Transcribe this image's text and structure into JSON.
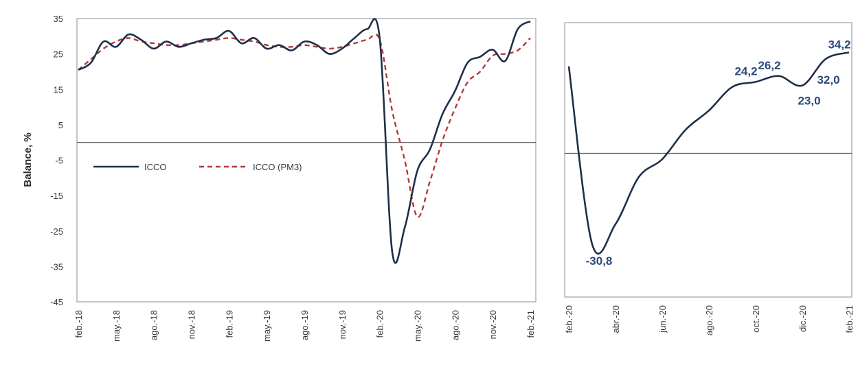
{
  "colors": {
    "icco": "#1f2f4a",
    "icco_pm3": "#b23a3a",
    "frame": "#8c8c8c",
    "zero_line": "#555555",
    "label": "#2b4a7a"
  },
  "chart_data": [
    {
      "type": "line",
      "ylabel": "Balance, %",
      "ylim": [
        -45,
        35
      ],
      "yticks": [
        "35",
        "25",
        "15",
        "5",
        "-5",
        "-15",
        "-25",
        "-35",
        "-45"
      ],
      "xtick_labels": [
        "feb.-18",
        "may.-18",
        "ago.-18",
        "nov.-18",
        "feb.-19",
        "may.-19",
        "ago.-19",
        "nov.-19",
        "feb.-20",
        "may.-20",
        "ago.-20",
        "nov.-20",
        "feb.-21"
      ],
      "x": [
        "feb.-18",
        "mar.-18",
        "abr.-18",
        "may.-18",
        "jun.-18",
        "jul.-18",
        "ago.-18",
        "sep.-18",
        "oct.-18",
        "nov.-18",
        "dic.-18",
        "ene.-19",
        "feb.-19",
        "mar.-19",
        "abr.-19",
        "may.-19",
        "jun.-19",
        "jul.-19",
        "ago.-19",
        "sep.-19",
        "oct.-19",
        "nov.-19",
        "dic.-19",
        "ene.-20",
        "feb.-20",
        "mar.-20",
        "abr.-20",
        "may.-20",
        "jun.-20",
        "jul.-20",
        "ago.-20",
        "sep.-20",
        "oct.-20",
        "nov.-20",
        "dic.-20",
        "ene.-21",
        "feb.-21"
      ],
      "series": [
        {
          "name": "ICCO",
          "style": "solid",
          "values": [
            20.5,
            22.5,
            28.5,
            27.0,
            30.5,
            29.0,
            26.5,
            28.5,
            27.0,
            28.0,
            29.0,
            29.5,
            31.5,
            28.0,
            29.5,
            26.5,
            27.5,
            26.0,
            28.5,
            27.5,
            25.0,
            26.5,
            29.5,
            32.0,
            29.5,
            -30.8,
            -24.0,
            -8.0,
            -2.0,
            8.0,
            14.5,
            22.5,
            24.2,
            26.2,
            23.0,
            32.0,
            34.2
          ]
        },
        {
          "name": "ICCO (PM3)",
          "style": "dashed",
          "values": [
            20.5,
            23.5,
            26.5,
            28.5,
            29.5,
            28.5,
            28.0,
            27.5,
            27.5,
            28.0,
            28.5,
            29.0,
            29.5,
            29.0,
            28.5,
            27.5,
            27.0,
            27.0,
            27.5,
            27.0,
            26.5,
            27.0,
            28.0,
            29.0,
            29.0,
            9.0,
            -5.0,
            -21.0,
            -11.0,
            0.5,
            9.5,
            17.0,
            20.0,
            24.5,
            25.0,
            26.0,
            29.5
          ]
        }
      ],
      "legend": {
        "placement": "center-left",
        "entries": [
          "ICCO",
          "ICCO (PM3)"
        ]
      },
      "grid": false,
      "zero_line": 0
    },
    {
      "type": "line",
      "xtick_labels": [
        "feb.-20",
        "abr.-20",
        "jun.-20",
        "ago.-20",
        "oct.-20",
        "dic.-20",
        "feb.-21"
      ],
      "x": [
        "feb.-20",
        "mar.-20",
        "abr.-20",
        "may.-20",
        "jun.-20",
        "jul.-20",
        "ago.-20",
        "sep.-20",
        "oct.-20",
        "nov.-20",
        "dic.-20",
        "ene.-21",
        "feb.-21"
      ],
      "ylim": [
        -45,
        35
      ],
      "series": [
        {
          "name": "ICCO",
          "style": "solid",
          "values": [
            29.5,
            -30.8,
            -24.0,
            -8.0,
            -2.0,
            8.0,
            14.5,
            22.5,
            24.2,
            26.2,
            23.0,
            32.0,
            34.2
          ]
        }
      ],
      "data_labels": [
        {
          "text": "-30,8",
          "x": "mar.-20"
        },
        {
          "text": "24,2",
          "x": "oct.-20"
        },
        {
          "text": "26,2",
          "x": "nov.-20"
        },
        {
          "text": "23,0",
          "x": "dic.-20"
        },
        {
          "text": "32,0",
          "x": "ene.-21"
        },
        {
          "text": "34,2",
          "x": "feb.-21"
        }
      ],
      "grid": false,
      "zero_line": 0
    }
  ]
}
